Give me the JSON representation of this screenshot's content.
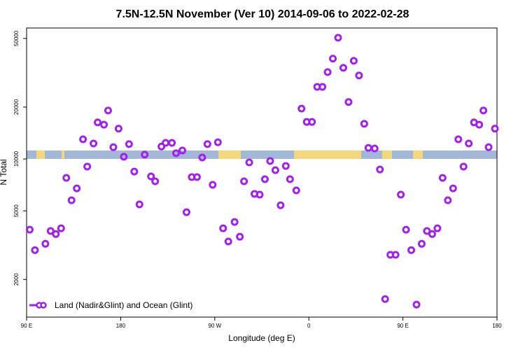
{
  "chart_data": {
    "type": "scatter",
    "title": "7.5N-12.5N November (Ver 10)   2014-09-06 to 2022-02-28",
    "x_label": "Longitude (deg E)",
    "y_label": "N Total",
    "ylog": true,
    "xlim": [
      90,
      540
    ],
    "ylim": [
      1210,
      57500
    ],
    "xticks": [
      {
        "value": 90,
        "label": "90 E"
      },
      {
        "value": 180,
        "label": "180"
      },
      {
        "value": 270,
        "label": "90 W"
      },
      {
        "value": 360,
        "label": "0"
      },
      {
        "value": 450,
        "label": "90 E"
      },
      {
        "value": 540,
        "label": "180"
      }
    ],
    "yticks": [
      2000,
      5000,
      10000,
      20000,
      50000
    ],
    "legend": "bottom-left",
    "series": [
      {
        "name": "Land (Nadir&Glint) and Ocean (Glint)",
        "color": "#a020f0",
        "x": [
          93,
          98,
          108,
          113,
          118,
          123,
          128,
          133,
          138,
          144,
          148,
          154,
          158,
          164,
          168,
          173,
          178,
          183,
          188,
          193,
          198,
          203,
          209,
          213,
          219,
          223,
          229,
          233,
          239,
          243,
          248,
          253,
          258,
          263,
          268,
          273,
          278,
          283,
          289,
          294,
          298,
          303,
          308,
          313,
          318,
          323,
          328,
          333,
          338,
          342,
          348,
          353,
          358,
          363,
          368,
          373,
          378,
          383,
          388,
          393,
          398,
          403,
          408,
          413,
          417,
          423,
          428,
          433,
          438,
          443,
          448,
          453,
          458,
          463,
          468,
          473,
          478,
          483,
          488,
          493,
          498,
          503,
          508,
          513,
          518,
          523,
          527,
          532,
          538
        ],
        "values": [
          3890,
          2960,
          3220,
          3820,
          3670,
          3960,
          7770,
          5760,
          6750,
          13000,
          9030,
          12300,
          16300,
          15800,
          19100,
          11700,
          15000,
          10300,
          12200,
          8450,
          5450,
          10600,
          7920,
          7420,
          11800,
          12400,
          12400,
          10800,
          11200,
          4910,
          7850,
          7850,
          10200,
          12200,
          7080,
          12500,
          3960,
          3320,
          4310,
          3540,
          7420,
          9550,
          6270,
          6210,
          7630,
          9730,
          8610,
          5390,
          9110,
          7630,
          6570,
          19600,
          16400,
          16400,
          26200,
          26200,
          31900,
          38200,
          50500,
          33800,
          21400,
          37100,
          30500,
          16000,
          11600,
          11500,
          8690,
          1540,
          2780,
          2780,
          6210,
          3890,
          2960,
          1430,
          3220,
          3820,
          3670,
          3960,
          7770,
          5760,
          6750,
          13000,
          9030,
          12300,
          16300,
          15800,
          19100,
          11700,
          15000
        ]
      }
    ]
  }
}
